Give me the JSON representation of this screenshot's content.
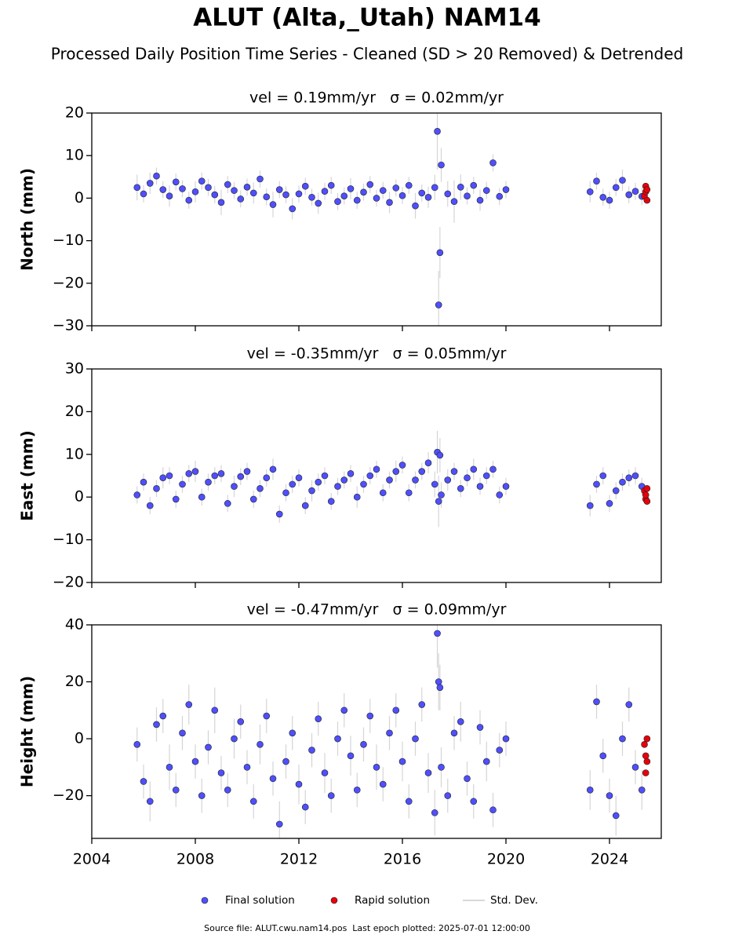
{
  "title": "ALUT (Alta,_Utah) NAM14",
  "subtitle": "Processed Daily Position Time Series - Cleaned (SD > 20 Removed) & Detrended",
  "source": "Source file: ALUT.cwu.nam14.pos  Last epoch plotted: 2025-07-01 12:00:00",
  "chart_data": [
    {
      "type": "scatter",
      "title": "vel = 0.19mm/yr   σ = 0.02mm/yr",
      "ylabel": "North (mm)",
      "xlim": [
        2004,
        2026
      ],
      "xticks": [
        2004,
        2008,
        2012,
        2016,
        2020,
        2024
      ],
      "show_xtick_labels": false,
      "ylim": [
        -30,
        20
      ],
      "yticks": [
        {
          "value": -30,
          "label": "−30"
        },
        {
          "value": -20,
          "label": "−20"
        },
        {
          "value": -10,
          "label": "−10"
        },
        0,
        10,
        20
      ],
      "series": [
        {
          "name": "Final solution",
          "color": "#4f4fff",
          "error_name": "Std. Dev.",
          "x": [
            2005.75,
            2006,
            2006.25,
            2006.5,
            2006.75,
            2007,
            2007.25,
            2007.5,
            2007.75,
            2008,
            2008.25,
            2008.5,
            2008.75,
            2009,
            2009.25,
            2009.5,
            2009.75,
            2010,
            2010.25,
            2010.5,
            2010.75,
            2011,
            2011.25,
            2011.5,
            2011.75,
            2012,
            2012.25,
            2012.5,
            2012.75,
            2013,
            2013.25,
            2013.5,
            2013.75,
            2014,
            2014.25,
            2014.5,
            2014.75,
            2015,
            2015.25,
            2015.5,
            2015.75,
            2016,
            2016.25,
            2016.5,
            2016.75,
            2017,
            2017.25,
            2017.35,
            2017.4,
            2017.45,
            2017.5,
            2017.75,
            2018,
            2018.25,
            2018.5,
            2018.75,
            2019,
            2019.25,
            2019.5,
            2019.75,
            2020,
            2023.25,
            2023.5,
            2023.75,
            2024,
            2024.25,
            2024.5,
            2024.75,
            2025,
            2025.25
          ],
          "values": [
            2.5,
            1.0,
            3.5,
            5.2,
            2.0,
            0.5,
            3.8,
            2.2,
            -0.5,
            1.5,
            4.0,
            2.5,
            0.8,
            -1.0,
            3.2,
            1.8,
            -0.2,
            2.6,
            1.2,
            4.5,
            0.3,
            -1.5,
            2.0,
            0.8,
            -2.5,
            1.0,
            2.8,
            0.2,
            -1.2,
            1.6,
            3.0,
            -0.8,
            0.5,
            2.2,
            -0.5,
            1.4,
            3.2,
            0.0,
            1.8,
            -1.0,
            2.4,
            0.6,
            3.0,
            -1.8,
            1.2,
            0.2,
            2.5,
            15.7,
            -25.1,
            -12.8,
            7.8,
            1.0,
            -0.8,
            2.6,
            0.5,
            3.0,
            -0.5,
            1.8,
            8.3,
            0.4,
            2.0,
            1.5,
            4.0,
            0.2,
            -0.5,
            2.5,
            4.2,
            0.8,
            1.6,
            0.4
          ],
          "errors": [
            3,
            2,
            2.5,
            2,
            2,
            2.5,
            2,
            2,
            2,
            2.5,
            2,
            2,
            2,
            3,
            2,
            2,
            2,
            2,
            2.5,
            2,
            2,
            3,
            2,
            2,
            2.5,
            2,
            2,
            2,
            2.5,
            2,
            2,
            2,
            2,
            2.5,
            2,
            2,
            2,
            2,
            2,
            2.5,
            2,
            2,
            2,
            3,
            2,
            2.5,
            3,
            9,
            8,
            6,
            4,
            3,
            5,
            3,
            2,
            2,
            2.5,
            2,
            2,
            2,
            2,
            2.5,
            2,
            2,
            2,
            2,
            2.5,
            2,
            2,
            2
          ]
        },
        {
          "name": "Rapid solution",
          "color": "#e8000b",
          "x": [
            2025.35,
            2025.4,
            2025.4,
            2025.45,
            2025.45
          ],
          "values": [
            0.5,
            2.8,
            1.5,
            -0.5,
            2.0
          ]
        }
      ]
    },
    {
      "type": "scatter",
      "title": "vel = -0.35mm/yr   σ = 0.05mm/yr",
      "ylabel": "East (mm)",
      "xlim": [
        2004,
        2026
      ],
      "xticks": [
        2004,
        2008,
        2012,
        2016,
        2020,
        2024
      ],
      "show_xtick_labels": false,
      "ylim": [
        -20,
        30
      ],
      "yticks": [
        {
          "value": -20,
          "label": "−20"
        },
        {
          "value": -10,
          "label": "−10"
        },
        0,
        10,
        20,
        30
      ],
      "series": [
        {
          "color": "#4f4fff",
          "x": [
            2005.75,
            2006,
            2006.25,
            2006.5,
            2006.75,
            2007,
            2007.25,
            2007.5,
            2007.75,
            2008,
            2008.25,
            2008.5,
            2008.75,
            2009,
            2009.25,
            2009.5,
            2009.75,
            2010,
            2010.25,
            2010.5,
            2010.75,
            2011,
            2011.25,
            2011.5,
            2011.75,
            2012,
            2012.25,
            2012.5,
            2012.75,
            2013,
            2013.25,
            2013.5,
            2013.75,
            2014,
            2014.25,
            2014.5,
            2014.75,
            2015,
            2015.25,
            2015.5,
            2015.75,
            2016,
            2016.25,
            2016.5,
            2016.75,
            2017,
            2017.25,
            2017.35,
            2017.4,
            2017.45,
            2017.5,
            2017.75,
            2018,
            2018.25,
            2018.5,
            2018.75,
            2019,
            2019.25,
            2019.5,
            2019.75,
            2020,
            2023.25,
            2023.5,
            2023.75,
            2024,
            2024.25,
            2024.5,
            2024.75,
            2025,
            2025.25
          ],
          "values": [
            0.5,
            3.5,
            -2.0,
            2.0,
            4.5,
            5.0,
            -0.5,
            3.0,
            5.5,
            6.0,
            0.0,
            3.5,
            5.0,
            5.5,
            -1.5,
            2.5,
            4.8,
            6.0,
            -0.5,
            2.0,
            4.5,
            6.5,
            -4.0,
            1.0,
            3.0,
            4.5,
            -2.0,
            1.5,
            3.5,
            5.0,
            -1.0,
            2.5,
            4.0,
            5.5,
            0.0,
            3.0,
            5.0,
            6.5,
            1.0,
            4.0,
            6.0,
            7.5,
            1.0,
            4.0,
            6.0,
            8.0,
            3.0,
            10.5,
            -1.0,
            9.8,
            0.5,
            4.0,
            6.0,
            2.0,
            4.5,
            6.5,
            2.5,
            5.0,
            6.5,
            0.5,
            2.5,
            -2.0,
            3.0,
            5.0,
            -1.5,
            1.5,
            3.5,
            4.5,
            5.0,
            2.5
          ],
          "errors": [
            2,
            2,
            2,
            2,
            2.5,
            2,
            2,
            2,
            2,
            2.5,
            2,
            2,
            2,
            2,
            2,
            2.5,
            2,
            2,
            2,
            2,
            2,
            2.5,
            2,
            2,
            2,
            2,
            2,
            2.5,
            2,
            2,
            2,
            2,
            2,
            2,
            2.5,
            2,
            2,
            2,
            2,
            2,
            2.5,
            2,
            2,
            2,
            2,
            2.5,
            3,
            5,
            6,
            4,
            3,
            2.5,
            2,
            2,
            2,
            2.5,
            2,
            2,
            2,
            2,
            2,
            2.5,
            2,
            2,
            2,
            2,
            2,
            2,
            2,
            2
          ]
        },
        {
          "color": "#e8000b",
          "x": [
            2025.35,
            2025.4,
            2025.4,
            2025.45,
            2025.45
          ],
          "values": [
            1.5,
            -0.5,
            0.5,
            2.0,
            -1.0
          ]
        }
      ]
    },
    {
      "type": "scatter",
      "title": "vel = -0.47mm/yr   σ = 0.09mm/yr",
      "ylabel": "Height (mm)",
      "xlim": [
        2004,
        2026
      ],
      "xticks": [
        2004,
        2008,
        2012,
        2016,
        2020,
        2024
      ],
      "show_xtick_labels": true,
      "ylim": [
        -35,
        40
      ],
      "yticks": [
        {
          "value": -20,
          "label": "−20"
        },
        0,
        20,
        40
      ],
      "series": [
        {
          "color": "#4f4fff",
          "x": [
            2005.75,
            2006,
            2006.25,
            2006.5,
            2006.75,
            2007,
            2007.25,
            2007.5,
            2007.75,
            2008,
            2008.25,
            2008.5,
            2008.75,
            2009,
            2009.25,
            2009.5,
            2009.75,
            2010,
            2010.25,
            2010.5,
            2010.75,
            2011,
            2011.25,
            2011.5,
            2011.75,
            2012,
            2012.25,
            2012.5,
            2012.75,
            2013,
            2013.25,
            2013.5,
            2013.75,
            2014,
            2014.25,
            2014.5,
            2014.75,
            2015,
            2015.25,
            2015.5,
            2015.75,
            2016,
            2016.25,
            2016.5,
            2016.75,
            2017,
            2017.25,
            2017.35,
            2017.4,
            2017.45,
            2017.5,
            2017.75,
            2018,
            2018.25,
            2018.5,
            2018.75,
            2019,
            2019.25,
            2019.5,
            2019.75,
            2020,
            2023.25,
            2023.5,
            2023.75,
            2024,
            2024.25,
            2024.5,
            2024.75,
            2025,
            2025.25
          ],
          "values": [
            -2,
            -15,
            -22,
            5,
            8,
            -10,
            -18,
            2,
            12,
            -8,
            -20,
            -3,
            10,
            -12,
            -18,
            0,
            6,
            -10,
            -22,
            -2,
            8,
            -14,
            -30,
            -8,
            2,
            -16,
            -24,
            -4,
            7,
            -12,
            -20,
            0,
            10,
            -6,
            -18,
            -2,
            8,
            -10,
            -16,
            2,
            10,
            -8,
            -22,
            0,
            12,
            -12,
            -26,
            37,
            20,
            18,
            -10,
            -20,
            2,
            6,
            -14,
            -22,
            4,
            -8,
            -25,
            -4,
            0,
            -18,
            13,
            -6,
            -20,
            -27,
            0,
            12,
            -10,
            -18
          ],
          "errors": [
            6,
            6,
            7,
            6,
            6,
            8,
            6,
            6,
            7,
            6,
            6,
            6,
            8,
            6,
            6,
            7,
            6,
            6,
            6,
            7,
            6,
            6,
            8,
            6,
            6,
            7,
            6,
            6,
            6,
            7,
            6,
            6,
            6,
            7,
            6,
            6,
            6,
            8,
            6,
            6,
            6,
            7,
            6,
            6,
            6,
            7,
            8,
            12,
            10,
            8,
            7,
            6,
            6,
            7,
            6,
            6,
            6,
            7,
            6,
            6,
            6,
            7,
            6,
            6,
            6,
            7,
            6,
            6,
            6,
            7
          ]
        },
        {
          "color": "#e8000b",
          "x": [
            2025.35,
            2025.4,
            2025.4,
            2025.45,
            2025.45
          ],
          "values": [
            -2,
            -12,
            -6,
            0,
            -8
          ]
        }
      ]
    }
  ]
}
